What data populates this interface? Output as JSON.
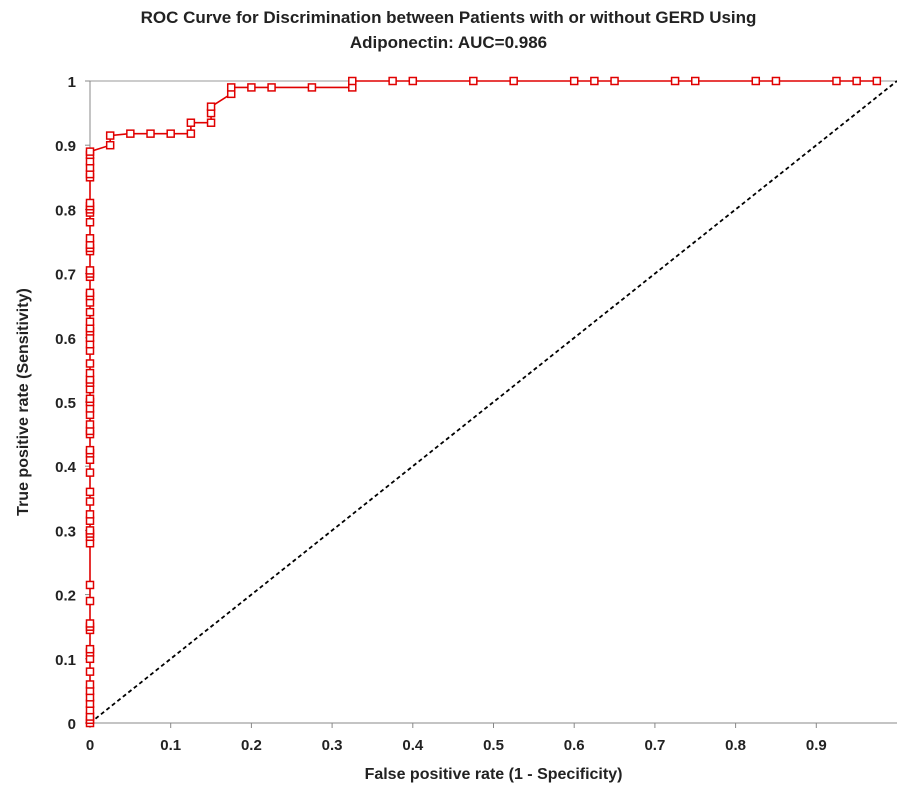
{
  "chart_data": {
    "type": "line",
    "title": "ROC Curve for Discrimination between Patients with or without GERD Using",
    "subtitle": "Adiponectin: AUC=0.986",
    "xlabel": "False positive rate (1 - Specificity)",
    "ylabel": "True positive rate (Sensitivity)",
    "xlim": [
      0,
      1
    ],
    "ylim": [
      0,
      1
    ],
    "x_ticks": [
      "0",
      "0.1",
      "0.2",
      "0.3",
      "0.4",
      "0.5",
      "0.6",
      "0.7",
      "0.8",
      "0.9"
    ],
    "y_ticks": [
      "0",
      "0.1",
      "0.2",
      "0.3",
      "0.4",
      "0.5",
      "0.6",
      "0.7",
      "0.8",
      "0.9",
      "1"
    ],
    "grid": "horizontal line at 1 only",
    "colors": {
      "roc": "#e00000",
      "reference": "#000000"
    },
    "series": [
      {
        "style": "solid line with square markers",
        "x": [
          0,
          0,
          0,
          0,
          0,
          0,
          0,
          0,
          0,
          0,
          0,
          0,
          0,
          0,
          0,
          0,
          0,
          0,
          0,
          0,
          0,
          0,
          0,
          0,
          0,
          0,
          0,
          0,
          0,
          0,
          0,
          0,
          0,
          0,
          0,
          0,
          0,
          0,
          0,
          0,
          0,
          0,
          0,
          0,
          0,
          0,
          0,
          0,
          0,
          0,
          0,
          0,
          0,
          0,
          0,
          0,
          0,
          0,
          0,
          0,
          0,
          0,
          0,
          0,
          0,
          0,
          0,
          0,
          0,
          0.025,
          0.025,
          0.05,
          0.075,
          0.1,
          0.125,
          0.125,
          0.15,
          0.15,
          0.15,
          0.175,
          0.175,
          0.2,
          0.225,
          0.275,
          0.325,
          0.325,
          0.375,
          0.4,
          0.475,
          0.525,
          0.6,
          0.625,
          0.65,
          0.725,
          0.75,
          0.825,
          0.85,
          0.925,
          0.95,
          0.975
        ],
        "y": [
          0,
          0.005,
          0.01,
          0.02,
          0.03,
          0.04,
          0.05,
          0.06,
          0.08,
          0.1,
          0.11,
          0.115,
          0.145,
          0.15,
          0.155,
          0.19,
          0.215,
          0.28,
          0.29,
          0.295,
          0.3,
          0.315,
          0.325,
          0.345,
          0.36,
          0.39,
          0.41,
          0.42,
          0.425,
          0.45,
          0.455,
          0.465,
          0.48,
          0.49,
          0.5,
          0.505,
          0.52,
          0.53,
          0.535,
          0.545,
          0.56,
          0.58,
          0.59,
          0.6,
          0.61,
          0.615,
          0.625,
          0.64,
          0.655,
          0.665,
          0.67,
          0.695,
          0.7,
          0.705,
          0.735,
          0.74,
          0.745,
          0.755,
          0.78,
          0.795,
          0.8,
          0.805,
          0.81,
          0.85,
          0.855,
          0.865,
          0.875,
          0.885,
          0.89,
          0.9,
          0.915,
          0.918,
          0.918,
          0.918,
          0.918,
          0.935,
          0.935,
          0.95,
          0.96,
          0.98,
          0.99,
          0.99,
          0.99,
          0.99,
          0.99,
          1,
          1,
          1,
          1,
          1,
          1,
          1,
          1,
          1,
          1,
          1,
          1,
          1,
          1,
          1
        ]
      },
      {
        "style": "dashed diagonal",
        "x": [
          0,
          1
        ],
        "y": [
          0,
          1
        ]
      }
    ]
  }
}
